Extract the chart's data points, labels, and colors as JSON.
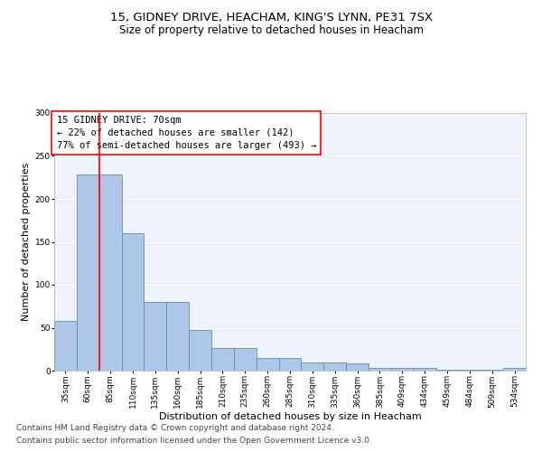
{
  "title1": "15, GIDNEY DRIVE, HEACHAM, KING'S LYNN, PE31 7SX",
  "title2": "Size of property relative to detached houses in Heacham",
  "xlabel": "Distribution of detached houses by size in Heacham",
  "ylabel": "Number of detached properties",
  "annotation_line1": "15 GIDNEY DRIVE: 70sqm",
  "annotation_line2": "← 22% of detached houses are smaller (142)",
  "annotation_line3": "77% of semi-detached houses are larger (493) →",
  "footer1": "Contains HM Land Registry data © Crown copyright and database right 2024.",
  "footer2": "Contains public sector information licensed under the Open Government Licence v3.0.",
  "bin_labels": [
    "35sqm",
    "60sqm",
    "85sqm",
    "110sqm",
    "135sqm",
    "160sqm",
    "185sqm",
    "210sqm",
    "235sqm",
    "260sqm",
    "285sqm",
    "310sqm",
    "335sqm",
    "360sqm",
    "385sqm",
    "409sqm",
    "434sqm",
    "459sqm",
    "484sqm",
    "509sqm",
    "534sqm"
  ],
  "values": [
    58,
    228,
    228,
    160,
    80,
    80,
    47,
    26,
    26,
    15,
    15,
    9,
    9,
    8,
    3,
    3,
    3,
    1,
    1,
    1,
    3
  ],
  "bar_color": "#aec6e8",
  "bar_edge_color": "#5a8fc2",
  "red_line_x": 1.5,
  "ylim": [
    0,
    300
  ],
  "yticks": [
    0,
    50,
    100,
    150,
    200,
    250,
    300
  ],
  "bg_color": "#eef2f9",
  "grid_color": "#ffffff",
  "title1_fontsize": 9.5,
  "title2_fontsize": 8.5,
  "xlabel_fontsize": 8,
  "ylabel_fontsize": 8,
  "annotation_fontsize": 7.5,
  "tick_fontsize": 6.5,
  "footer_fontsize": 6.5
}
